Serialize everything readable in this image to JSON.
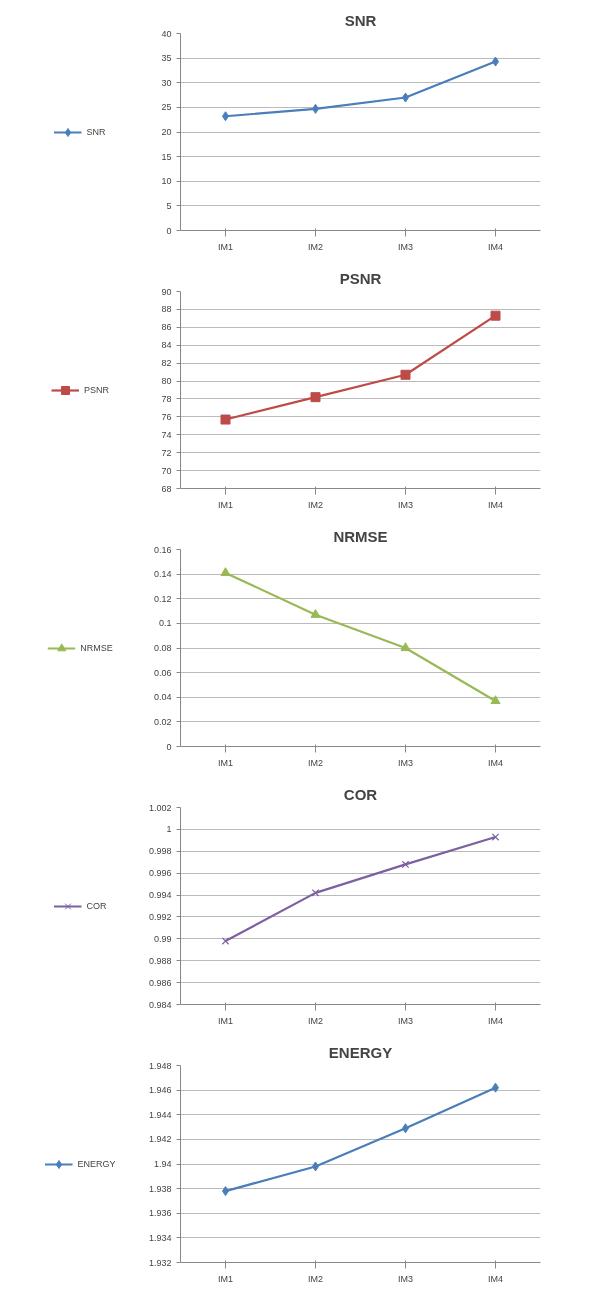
{
  "chart_data": [
    {
      "type": "line",
      "title": "SNR",
      "categories": [
        "IM1",
        "IM2",
        "IM3",
        "IM4"
      ],
      "series": [
        {
          "name": "SNR",
          "color": "#4a7ebb",
          "values": [
            23.2,
            24.7,
            27.0,
            34.3
          ]
        }
      ],
      "ylim": [
        0,
        40
      ],
      "yticks": [
        0,
        5,
        10,
        15,
        20,
        25,
        30,
        35,
        40
      ],
      "grid": "y",
      "legend": "left",
      "marker": "diamond"
    },
    {
      "type": "line",
      "title": "PSNR",
      "categories": [
        "IM1",
        "IM2",
        "IM3",
        "IM4"
      ],
      "series": [
        {
          "name": "PSNR",
          "color": "#be4b48",
          "values": [
            75.7,
            78.2,
            80.7,
            87.3
          ]
        }
      ],
      "ylim": [
        68,
        90
      ],
      "yticks": [
        68,
        70,
        72,
        74,
        76,
        78,
        80,
        82,
        84,
        86,
        88,
        90
      ],
      "grid": "y",
      "legend": "left",
      "marker": "square"
    },
    {
      "type": "line",
      "title": "NRMSE",
      "categories": [
        "IM1",
        "IM2",
        "IM3",
        "IM4"
      ],
      "series": [
        {
          "name": "NRMSE",
          "color": "#98b954",
          "values": [
            0.141,
            0.107,
            0.08,
            0.037
          ]
        }
      ],
      "ylim": [
        0,
        0.16
      ],
      "yticks": [
        0,
        0.02,
        0.04,
        0.06,
        0.08,
        0.1,
        0.12,
        0.14,
        0.16
      ],
      "grid": "y",
      "legend": "left",
      "marker": "triangle"
    },
    {
      "type": "line",
      "title": "COR",
      "categories": [
        "IM1",
        "IM2",
        "IM3",
        "IM4"
      ],
      "series": [
        {
          "name": "COR",
          "color": "#7d60a0",
          "values": [
            0.9898,
            0.9942,
            0.9968,
            0.9993
          ]
        }
      ],
      "ylim": [
        0.984,
        1.002
      ],
      "yticks": [
        0.984,
        0.986,
        0.988,
        0.99,
        0.992,
        0.994,
        0.996,
        0.998,
        1,
        1.002
      ],
      "grid": "y",
      "legend": "left",
      "marker": "cross"
    },
    {
      "type": "line",
      "title": "ENERGY",
      "categories": [
        "IM1",
        "IM2",
        "IM3",
        "IM4"
      ],
      "series": [
        {
          "name": "ENERGY",
          "color": "#4a7ebb",
          "values": [
            1.9378,
            1.9398,
            1.9429,
            1.9462
          ]
        }
      ],
      "ylim": [
        1.932,
        1.948
      ],
      "yticks": [
        1.932,
        1.934,
        1.936,
        1.938,
        1.94,
        1.942,
        1.944,
        1.946,
        1.948
      ],
      "grid": "y",
      "legend": "left",
      "marker": "diamond"
    }
  ]
}
